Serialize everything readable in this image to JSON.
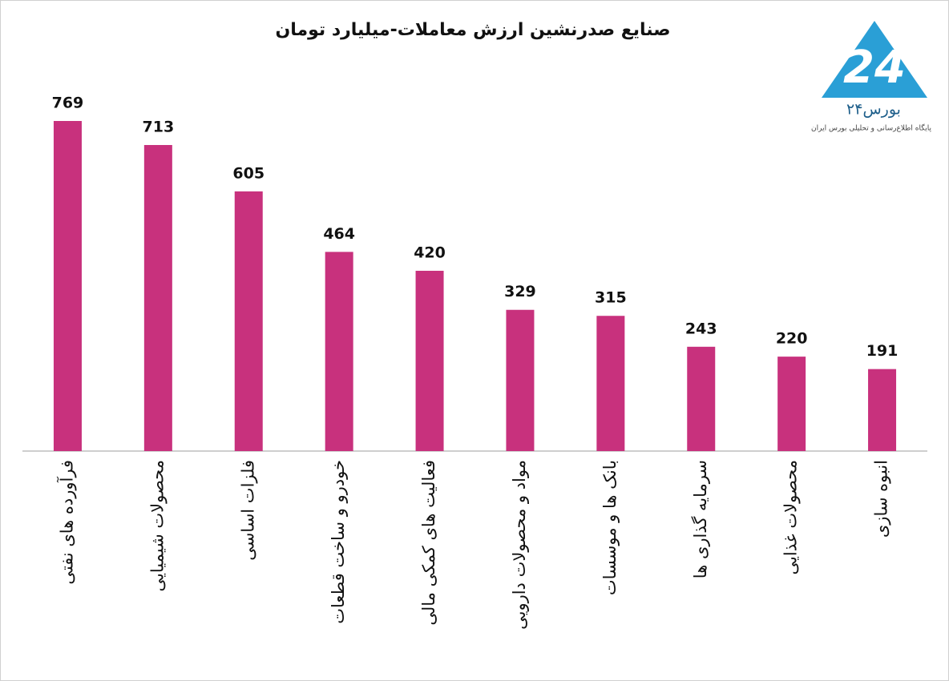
{
  "chart_data": {
    "type": "bar",
    "title": "صنایع صدرنشین ارزش معاملات-میلیارد تومان",
    "categories": [
      "فرآورده های نفتی",
      "محصولات شیمیایی",
      "فلزات اساسی",
      "خودرو و ساخت قطعات",
      "فعالیت های کمکی مالی",
      "مواد و محصولات دارویی",
      "بانک ها و موسسات",
      "سرمایه گذاری ها",
      "محصولات غذایی",
      "انبوه سازی"
    ],
    "values": [
      769,
      713,
      605,
      464,
      420,
      329,
      315,
      243,
      220,
      191
    ],
    "color": "#c8317d"
  },
  "logo": {
    "name": "بورس۲۴",
    "tagline": "پایگاه اطلاع‌رسانی و تحلیلی بورس ایران"
  }
}
